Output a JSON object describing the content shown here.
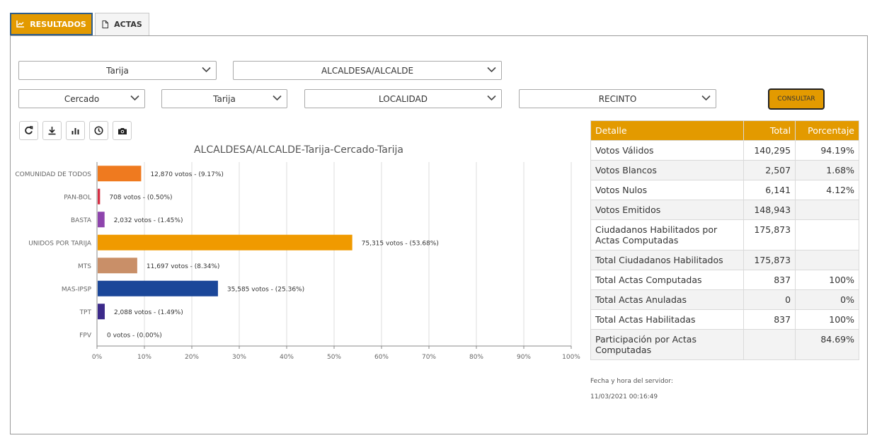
{
  "tabs": [
    {
      "label": "RESULTADOS",
      "icon": "line-chart-icon",
      "active": true
    },
    {
      "label": "ACTAS",
      "icon": "file-icon",
      "active": false
    }
  ],
  "filters": {
    "departamento": "Tarija",
    "cargo": "ALCALDESA/ALCALDE",
    "provincia": "Cercado",
    "municipio": "Tarija",
    "localidad": "LOCALIDAD",
    "recinto": "RECINTO"
  },
  "consultar_label": "CONSULTAR",
  "toolbar": [
    "refresh-icon",
    "download-icon",
    "bar-chart-icon",
    "clock-icon",
    "camera-icon"
  ],
  "colors": {
    "accent": "#e39a00"
  },
  "chart_data": {
    "type": "bar",
    "orientation": "horizontal",
    "title": "ALCALDESA/ALCALDE-Tarija-Cercado-Tarija",
    "categories": [
      "COMUNIDAD DE TODOS",
      "PAN-BOL",
      "BASTA",
      "UNIDOS POR TARIJA",
      "MTS",
      "MAS-IPSP",
      "TPT",
      "FPV"
    ],
    "values": [
      9.17,
      0.5,
      1.45,
      53.68,
      8.34,
      25.36,
      1.49,
      0.0
    ],
    "labels": [
      "12,870 votos - (9.17%)",
      "708 votos - (0.50%)",
      "2,032 votos - (1.45%)",
      "75,315 votos - (53.68%)",
      "11,697 votos - (8.34%)",
      "35,585 votos - (25.36%)",
      "2,088 votos - (1.49%)",
      "0 votos - (0.00%)"
    ],
    "colors": [
      "#ef7a1f",
      "#d62f44",
      "#8e44ad",
      "#f09a00",
      "#c98f68",
      "#1b4799",
      "#3c2a8a",
      "#999999"
    ],
    "xlim": [
      0,
      100
    ],
    "xticks": [
      "0%",
      "10%",
      "20%",
      "30%",
      "40%",
      "50%",
      "60%",
      "70%",
      "80%",
      "90%",
      "100%"
    ],
    "grid": true
  },
  "table": {
    "headers": [
      "Detalle",
      "Total",
      "Porcentaje"
    ],
    "rows": [
      [
        "Votos Válidos",
        "140,295",
        "94.19%"
      ],
      [
        "Votos Blancos",
        "2,507",
        "1.68%"
      ],
      [
        "Votos Nulos",
        "6,141",
        "4.12%"
      ],
      [
        "Votos Emitidos",
        "148,943",
        ""
      ],
      [
        "Ciudadanos Habilitados por Actas Computadas",
        "175,873",
        ""
      ],
      [
        "Total Ciudadanos Habilitados",
        "175,873",
        ""
      ],
      [
        "Total Actas Computadas",
        "837",
        "100%"
      ],
      [
        "Total Actas Anuladas",
        "0",
        "0%"
      ],
      [
        "Total Actas Habilitadas",
        "837",
        "100%"
      ],
      [
        "Participación por Actas Computadas",
        "",
        "84.69%"
      ]
    ]
  },
  "server": {
    "label": "Fecha y hora del servidor:",
    "datetime": "11/03/2021 00:16:49"
  }
}
